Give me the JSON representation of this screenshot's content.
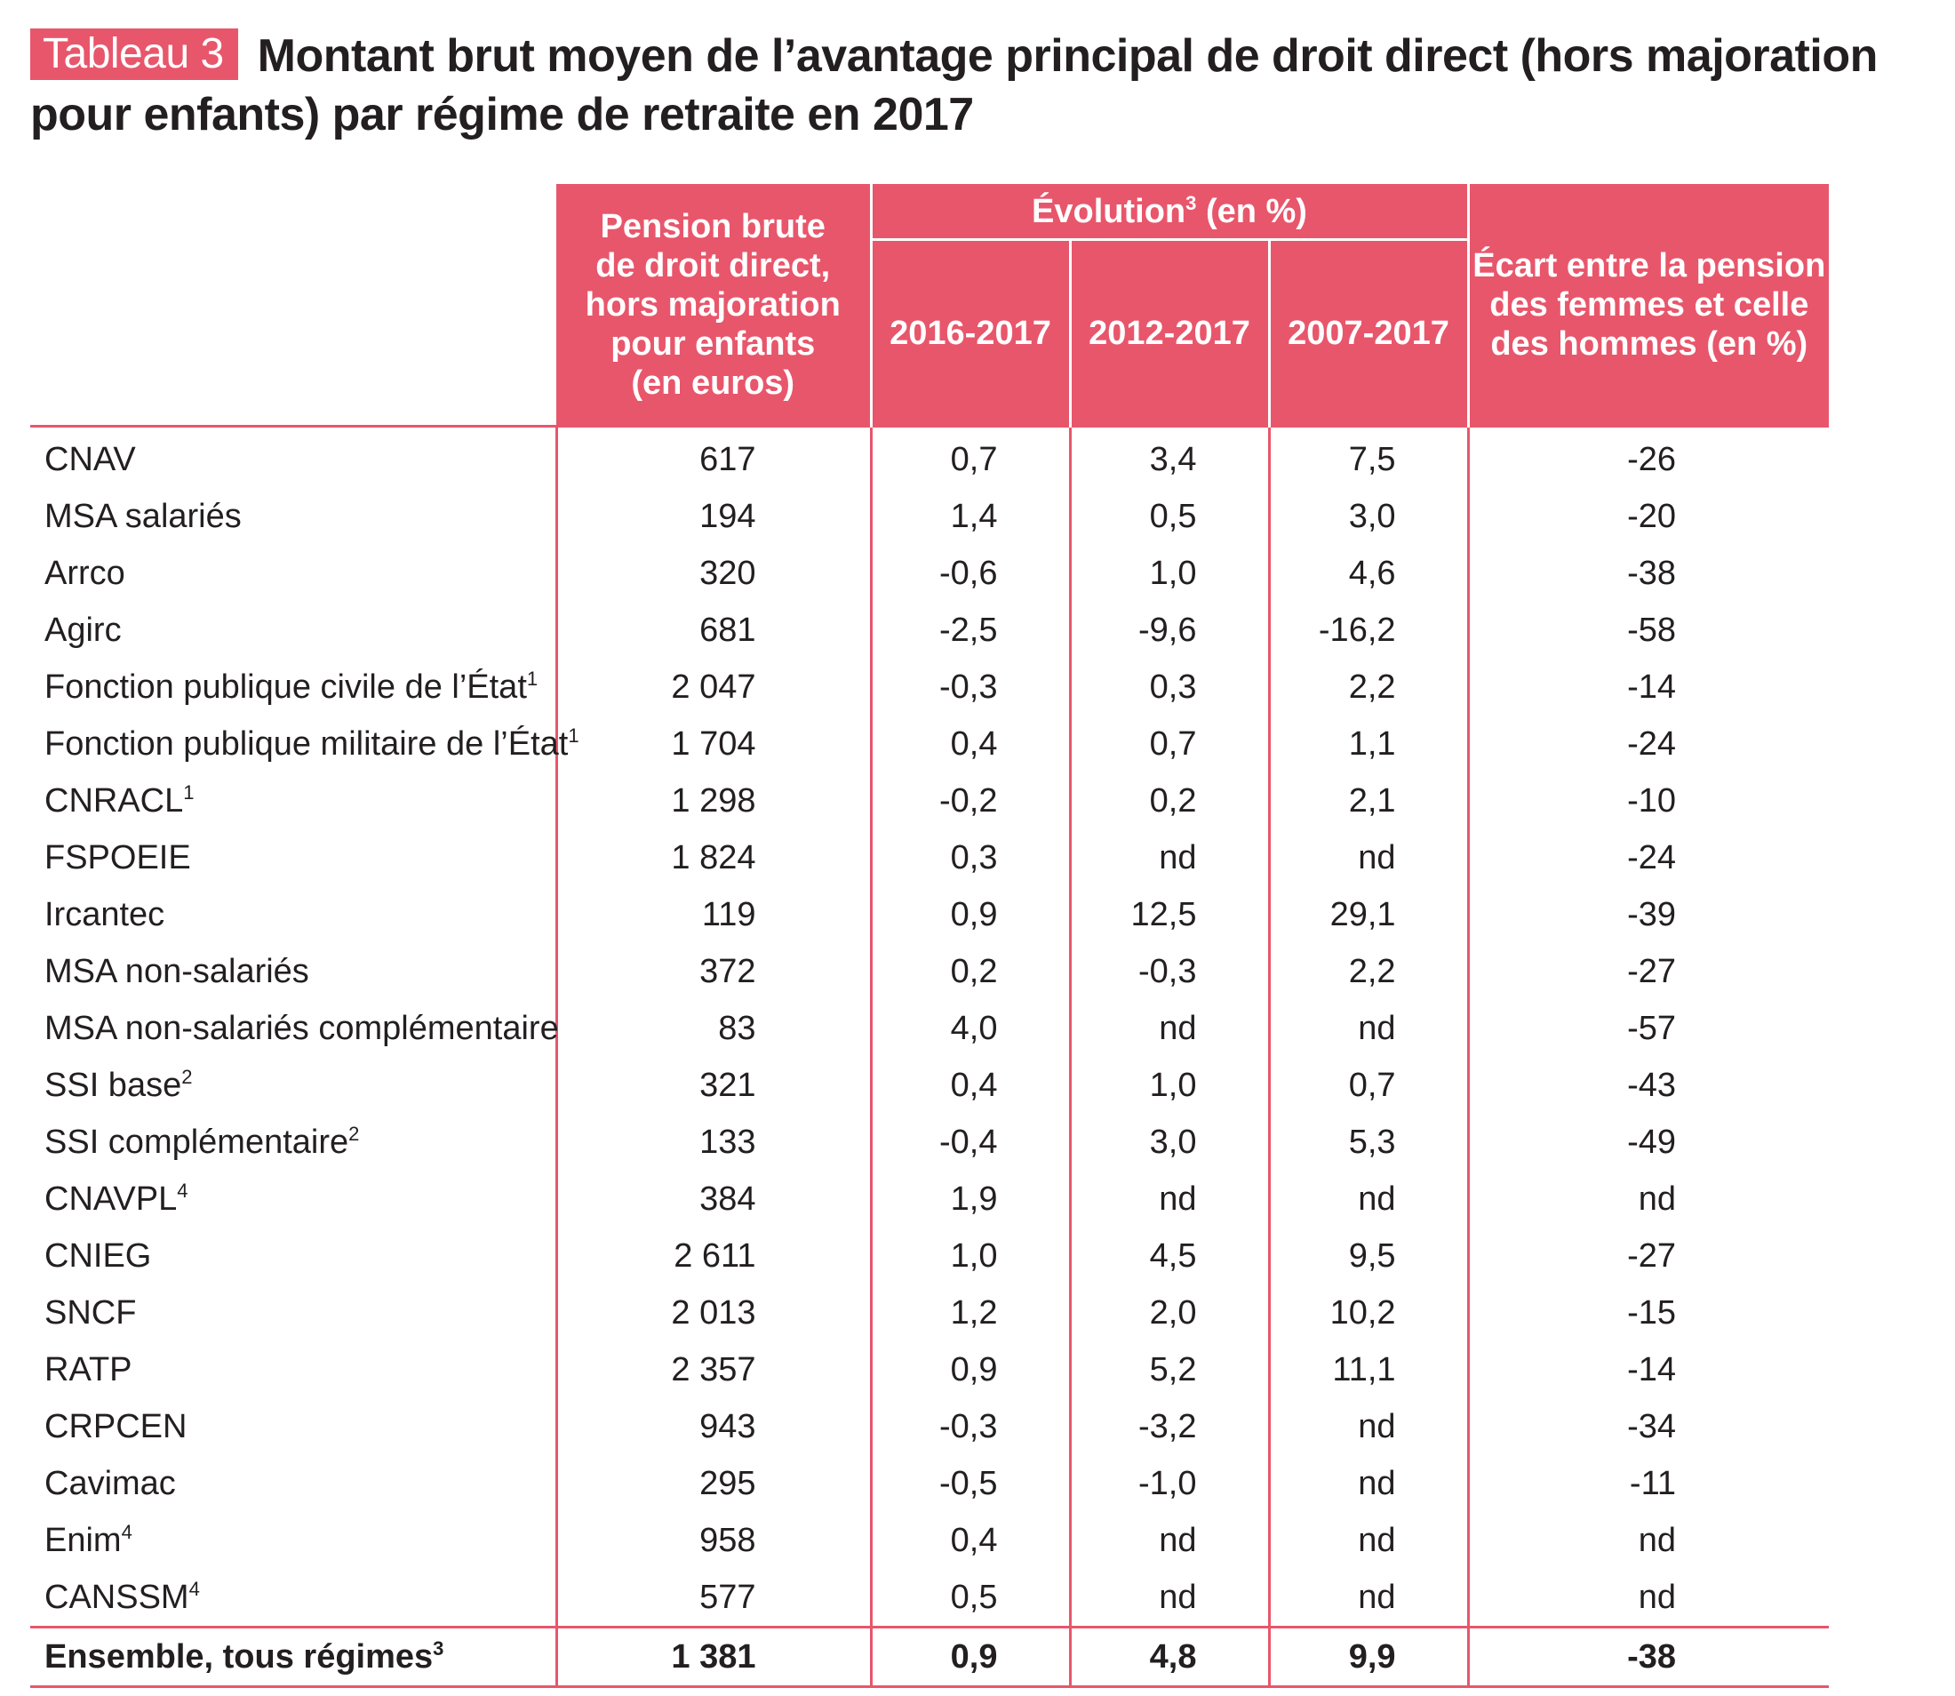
{
  "title": {
    "badge": "Tableau 3",
    "line1": "Montant brut moyen de l’avantage principal de droit direct (hors majoration",
    "line2": "pour enfants) par régime de retraite en 2017"
  },
  "colors": {
    "accent": "#e8566b",
    "text": "#231f20",
    "header_text": "#ffffff"
  },
  "header": {
    "pension_line1": "Pension brute",
    "pension_line2": "de droit direct,",
    "pension_line3": "hors majoration",
    "pension_line4": "pour enfants",
    "pension_line5": "(en euros)",
    "evolution_label": "Évolution",
    "evolution_sup": "3",
    "evolution_unit": " (en %)",
    "period1": "2016-2017",
    "period2": "2012-2017",
    "period3": "2007-2017",
    "gap_line1": "Écart entre la pension",
    "gap_line2": "des femmes et celle",
    "gap_line3": "des hommes (en %)"
  },
  "rows": [
    {
      "label": "CNAV",
      "sup": "",
      "pension": "617",
      "e1": "0,7",
      "e2": "3,4",
      "e3": "7,5",
      "gap": "-26"
    },
    {
      "label": "MSA salariés",
      "sup": "",
      "pension": "194",
      "e1": "1,4",
      "e2": "0,5",
      "e3": "3,0",
      "gap": "-20"
    },
    {
      "label": "Arrco",
      "sup": "",
      "pension": "320",
      "e1": "-0,6",
      "e2": "1,0",
      "e3": "4,6",
      "gap": "-38"
    },
    {
      "label": "Agirc",
      "sup": "",
      "pension": "681",
      "e1": "-2,5",
      "e2": "-9,6",
      "e3": "-16,2",
      "gap": "-58"
    },
    {
      "label": "Fonction publique civile de l’État",
      "sup": "1",
      "pension": "2 047",
      "e1": "-0,3",
      "e2": "0,3",
      "e3": "2,2",
      "gap": "-14"
    },
    {
      "label": "Fonction publique militaire de l’État",
      "sup": "1",
      "pension": "1 704",
      "e1": "0,4",
      "e2": "0,7",
      "e3": "1,1",
      "gap": "-24"
    },
    {
      "label": "CNRACL",
      "sup": "1",
      "pension": "1 298",
      "e1": "-0,2",
      "e2": "0,2",
      "e3": "2,1",
      "gap": "-10"
    },
    {
      "label": "FSPOEIE",
      "sup": "",
      "pension": "1 824",
      "e1": "0,3",
      "e2": "nd",
      "e3": "nd",
      "gap": "-24"
    },
    {
      "label": "Ircantec",
      "sup": "",
      "pension": "119",
      "e1": "0,9",
      "e2": "12,5",
      "e3": "29,1",
      "gap": "-39"
    },
    {
      "label": "MSA non-salariés",
      "sup": "",
      "pension": "372",
      "e1": "0,2",
      "e2": "-0,3",
      "e3": "2,2",
      "gap": "-27"
    },
    {
      "label": "MSA non-salariés complémentaire",
      "sup": "",
      "pension": "83",
      "e1": "4,0",
      "e2": "nd",
      "e3": "nd",
      "gap": "-57"
    },
    {
      "label": "SSI base",
      "sup": "2",
      "pension": "321",
      "e1": "0,4",
      "e2": "1,0",
      "e3": "0,7",
      "gap": "-43"
    },
    {
      "label": "SSI complémentaire",
      "sup": "2",
      "pension": "133",
      "e1": "-0,4",
      "e2": "3,0",
      "e3": "5,3",
      "gap": "-49"
    },
    {
      "label": "CNAVPL",
      "sup": "4",
      "pension": "384",
      "e1": "1,9",
      "e2": "nd",
      "e3": "nd",
      "gap": "nd"
    },
    {
      "label": "CNIEG",
      "sup": "",
      "pension": "2 611",
      "e1": "1,0",
      "e2": "4,5",
      "e3": "9,5",
      "gap": "-27"
    },
    {
      "label": "SNCF",
      "sup": "",
      "pension": "2 013",
      "e1": "1,2",
      "e2": "2,0",
      "e3": "10,2",
      "gap": "-15"
    },
    {
      "label": "RATP",
      "sup": "",
      "pension": "2 357",
      "e1": "0,9",
      "e2": "5,2",
      "e3": "11,1",
      "gap": "-14"
    },
    {
      "label": "CRPCEN",
      "sup": "",
      "pension": "943",
      "e1": "-0,3",
      "e2": "-3,2",
      "e3": "nd",
      "gap": "-34"
    },
    {
      "label": "Cavimac",
      "sup": "",
      "pension": "295",
      "e1": "-0,5",
      "e2": "-1,0",
      "e3": "nd",
      "gap": "-11"
    },
    {
      "label": "Enim",
      "sup": "4",
      "pension": "958",
      "e1": "0,4",
      "e2": "nd",
      "e3": "nd",
      "gap": "nd"
    },
    {
      "label": "CANSSM",
      "sup": "4",
      "pension": "577",
      "e1": "0,5",
      "e2": "nd",
      "e3": "nd",
      "gap": "nd"
    }
  ],
  "total": {
    "label": "Ensemble, tous régimes",
    "sup": "3",
    "pension": "1 381",
    "e1": "0,9",
    "e2": "4,8",
    "e3": "9,9",
    "gap": "-38"
  }
}
